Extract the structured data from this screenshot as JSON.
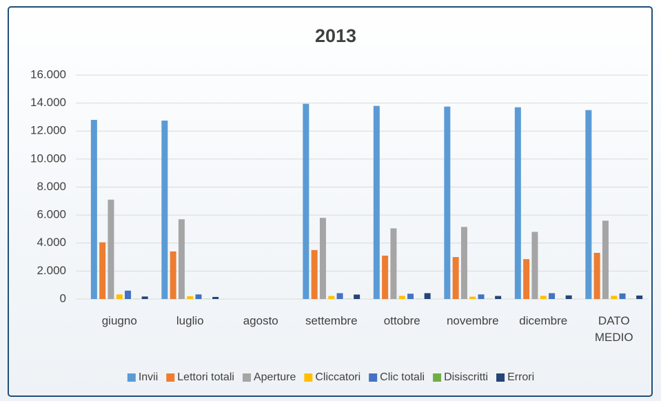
{
  "chart_data": {
    "type": "bar",
    "title": "2013",
    "categories": [
      "giugno",
      "luglio",
      "agosto",
      "settembre",
      "ottobre",
      "novembre",
      "dicembre",
      "DATO MEDIO"
    ],
    "series": [
      {
        "name": "Invii",
        "color": "#5b9bd5",
        "values": [
          12800,
          12750,
          null,
          13950,
          13800,
          13750,
          13700,
          13500
        ]
      },
      {
        "name": "Lettori totali",
        "color": "#ed7d31",
        "values": [
          4050,
          3400,
          null,
          3500,
          3100,
          3000,
          2850,
          3300
        ]
      },
      {
        "name": "Aperture",
        "color": "#a5a5a5",
        "values": [
          7100,
          5700,
          null,
          5800,
          5050,
          5150,
          4800,
          5600
        ]
      },
      {
        "name": "Cliccatori",
        "color": "#ffc000",
        "values": [
          330,
          200,
          null,
          220,
          230,
          170,
          230,
          230
        ]
      },
      {
        "name": "Clic totali",
        "color": "#4472c4",
        "values": [
          600,
          330,
          null,
          420,
          380,
          330,
          420,
          400
        ]
      },
      {
        "name": "Disiscritti",
        "color": "#70ad47",
        "values": [
          10,
          10,
          null,
          10,
          10,
          10,
          10,
          10
        ]
      },
      {
        "name": "Errori",
        "color": "#264478",
        "values": [
          180,
          150,
          null,
          320,
          420,
          220,
          260,
          250
        ]
      }
    ],
    "ylim": [
      0,
      16000
    ],
    "yticks": [
      0,
      {
        "value": 2000,
        "label": "2.000"
      },
      {
        "value": 4000,
        "label": "4.000"
      },
      {
        "value": 6000,
        "label": "6.000"
      },
      {
        "value": 8000,
        "label": "8.000"
      },
      {
        "value": 10000,
        "label": "10.000"
      },
      {
        "value": 12000,
        "label": "12.000"
      },
      {
        "value": 14000,
        "label": "14.000"
      },
      {
        "value": 16000,
        "label": "16.000"
      }
    ],
    "grid": true,
    "legend": "bottom"
  }
}
